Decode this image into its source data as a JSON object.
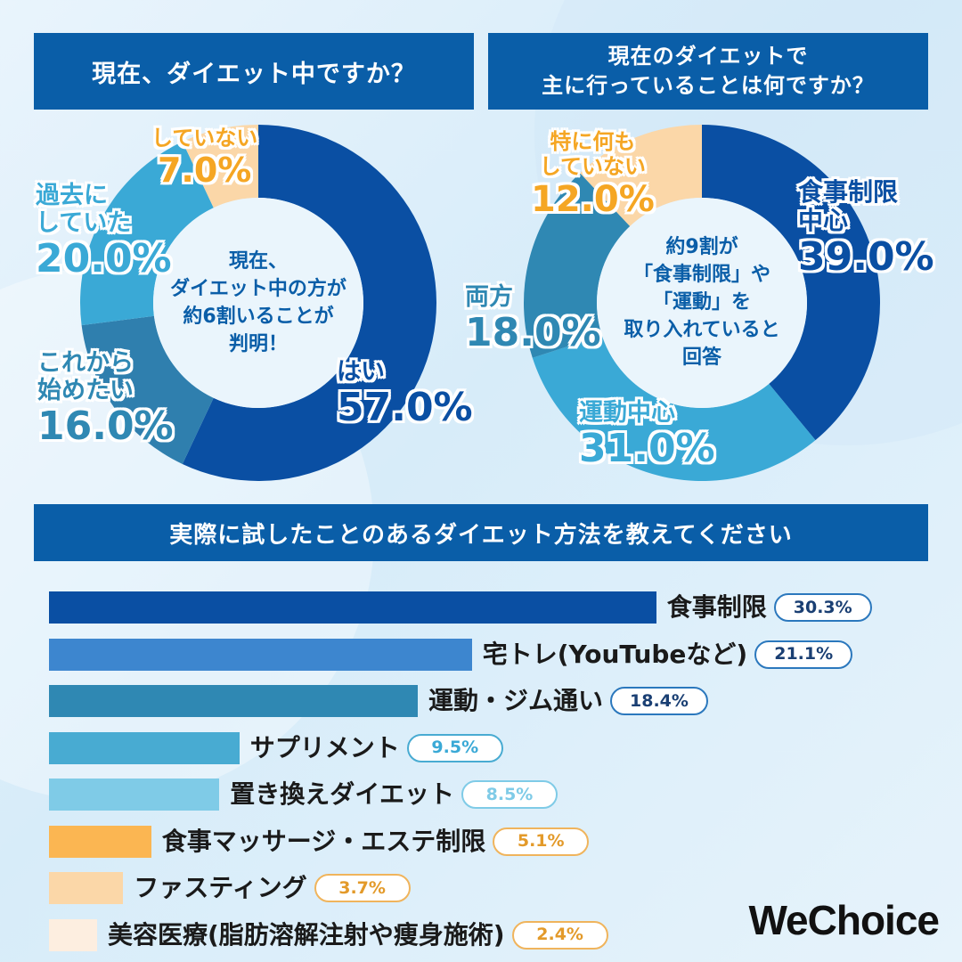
{
  "colors": {
    "navy": "#0a4fa3",
    "blue_mid": "#2e85c8",
    "teal": "#2f88b3",
    "sky": "#3aa9d6",
    "light_sky": "#6cc7e6",
    "orange": "#fbb652",
    "peach": "#fbd7a8",
    "cream": "#fdeee0",
    "header_bg": "#0a5ea8"
  },
  "q1": {
    "title": "現在、ダイエット中ですか？",
    "center": [
      "現在、",
      "ダイエット中の方が",
      "約6割いることが",
      "判明！"
    ]
  },
  "q2": {
    "title_line1": "現在のダイエットで",
    "title_line2": "主に行っていることは何ですか？",
    "center": [
      "約9割が",
      "「食事制限」や",
      "「運動」を",
      "取り入れていると",
      "回答"
    ]
  },
  "q3": {
    "title": "実際に試したことのあるダイエット方法を教えてください"
  },
  "logo": "WeChoice",
  "chart_data": [
    {
      "type": "pie",
      "title": "現在、ダイエット中ですか？",
      "labels": [
        "はい",
        "これから始めたい",
        "過去にしていた",
        "していない"
      ],
      "values": [
        57.0,
        16.0,
        20.0,
        7.0
      ],
      "label_lines": [
        [
          "はい"
        ],
        [
          "これから",
          "始めたい"
        ],
        [
          "過去に",
          "していた"
        ],
        [
          "していない"
        ]
      ],
      "value_labels": [
        "57.0%",
        "16.0%",
        "20.0%",
        "7.0%"
      ],
      "colors": [
        "#0a4fa3",
        "#2f7fae",
        "#3aa9d6",
        "#fbd7a8"
      ],
      "label_colors": [
        "#0a4fa3",
        "#2f88b3",
        "#3aa9d6",
        "#f5a623"
      ]
    },
    {
      "type": "pie",
      "title": "現在のダイエットで主に行っていることは何ですか？",
      "labels": [
        "食事制限中心",
        "運動中心",
        "両方",
        "特に何もしていない"
      ],
      "values": [
        39.0,
        31.0,
        18.0,
        12.0
      ],
      "label_lines": [
        [
          "食事制限",
          "中心"
        ],
        [
          "運動中心"
        ],
        [
          "両方"
        ],
        [
          "特に何も",
          "していない"
        ]
      ],
      "value_labels": [
        "39.0%",
        "31.0%",
        "18.0%",
        "12.0%"
      ],
      "colors": [
        "#0a4fa3",
        "#3aa9d6",
        "#2f88b3",
        "#fbd7a8"
      ],
      "label_colors": [
        "#0a4fa3",
        "#3aa9d6",
        "#2f88b3",
        "#f5a623"
      ]
    },
    {
      "type": "bar",
      "title": "実際に試したことのあるダイエット方法を教えてください",
      "categories": [
        "食事制限",
        "宅トレ(YouTubeなど)",
        "運動・ジム通い",
        "サプリメント",
        "置き換えダイエット",
        "食事マッサージ・エステ制限",
        "ファスティング",
        "美容医療(脂肪溶解注射や痩身施術)"
      ],
      "values": [
        30.3,
        21.1,
        18.4,
        9.5,
        8.5,
        5.1,
        3.7,
        2.4
      ],
      "value_labels": [
        "30.3%",
        "21.1%",
        "18.4%",
        "9.5%",
        "8.5%",
        "5.1%",
        "3.7%",
        "2.4%"
      ],
      "colors": [
        "#0a4fa3",
        "#3d86cf",
        "#2f88b3",
        "#48abd2",
        "#7fcbe7",
        "#fbb652",
        "#fbd7a8",
        "#fdeee0"
      ],
      "border_colors": [
        "#2b78bd",
        "#2b78bd",
        "#2b78bd",
        "#48abd2",
        "#7fcbe7",
        "#f0b45c",
        "#f0b45c",
        "#f0b45c"
      ],
      "text_colors": [
        "#1a3f73",
        "#1a3f73",
        "#1a3f73",
        "#3aa9d6",
        "#7fcbe7",
        "#e39a2a",
        "#e39a2a",
        "#e39a2a"
      ]
    }
  ]
}
